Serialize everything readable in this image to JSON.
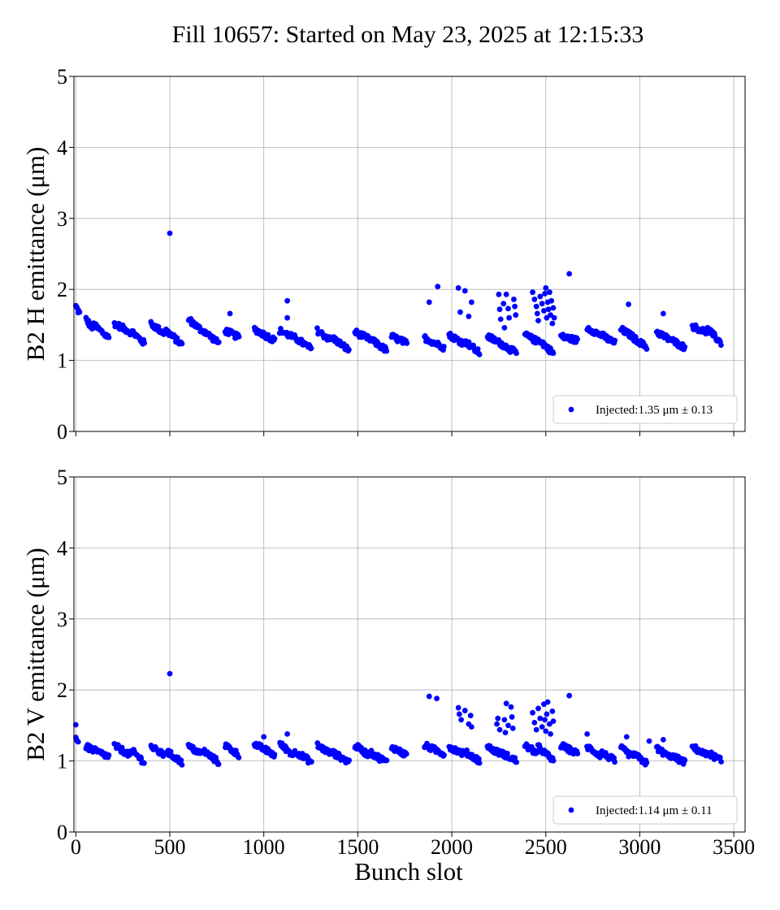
{
  "figure": {
    "title": "Fill 10657: Started on May 23, 2025 at 12:15:33",
    "xlabel": "Bunch slot"
  },
  "chart_data": [
    {
      "type": "scatter",
      "ylabel": "B2 H emittance (μm)",
      "xlim": [
        -10,
        3560
      ],
      "ylim": [
        0,
        5
      ],
      "xticks": [
        0,
        500,
        1000,
        1500,
        2000,
        2500,
        3000,
        3500
      ],
      "xtick_labels_visible": false,
      "yticks": [
        0,
        1,
        2,
        3,
        4,
        5
      ],
      "grid": true,
      "legend_position": "lower-right",
      "marker_color": "#0000ff",
      "series": [
        {
          "name": "Injected:1.35 μm ± 0.13",
          "trains": [
            [
              0,
              20,
              1.76,
              1.66
            ],
            [
              55,
              90,
              1.58,
              1.44
            ],
            [
              95,
              175,
              1.5,
              1.32
            ],
            [
              205,
              290,
              1.52,
              1.4
            ],
            [
              300,
              365,
              1.4,
              1.24
            ],
            [
              400,
              470,
              1.52,
              1.38
            ],
            [
              480,
              565,
              1.42,
              1.22
            ],
            [
              600,
              670,
              1.58,
              1.42
            ],
            [
              680,
              760,
              1.42,
              1.24
            ],
            [
              795,
              870,
              1.42,
              1.32
            ],
            [
              950,
              1060,
              1.44,
              1.28
            ],
            [
              1085,
              1160,
              1.42,
              1.32
            ],
            [
              1165,
              1255,
              1.32,
              1.16
            ],
            [
              1285,
              1360,
              1.42,
              1.28
            ],
            [
              1365,
              1455,
              1.32,
              1.14
            ],
            [
              1485,
              1560,
              1.4,
              1.3
            ],
            [
              1565,
              1655,
              1.3,
              1.14
            ],
            [
              1680,
              1760,
              1.34,
              1.24
            ],
            [
              1855,
              1960,
              1.32,
              1.18
            ],
            [
              1985,
              2065,
              1.36,
              1.24
            ],
            [
              2075,
              2150,
              1.26,
              1.1
            ],
            [
              2190,
              2260,
              1.34,
              1.24
            ],
            [
              2260,
              2345,
              1.24,
              1.1
            ],
            [
              2390,
              2460,
              1.36,
              1.26
            ],
            [
              2460,
              2540,
              1.3,
              1.1
            ],
            [
              2580,
              2670,
              1.34,
              1.28
            ],
            [
              2720,
              2790,
              1.46,
              1.36
            ],
            [
              2795,
              2870,
              1.36,
              1.24
            ],
            [
              2900,
              2960,
              1.44,
              1.34
            ],
            [
              2965,
              3040,
              1.32,
              1.18
            ],
            [
              3090,
              3155,
              1.4,
              1.3
            ],
            [
              3160,
              3240,
              1.3,
              1.18
            ],
            [
              3280,
              3355,
              1.48,
              1.4
            ],
            [
              3360,
              3435,
              1.44,
              1.24
            ]
          ],
          "outliers": [
            [
              500,
              2.79
            ],
            [
              1880,
              1.82
            ],
            [
              1925,
              2.04
            ],
            [
              2035,
              2.02
            ],
            [
              2045,
              1.68
            ],
            [
              2070,
              1.98
            ],
            [
              2090,
              1.62
            ],
            [
              2105,
              1.82
            ],
            [
              2250,
              1.93
            ],
            [
              2255,
              1.72
            ],
            [
              2260,
              1.58
            ],
            [
              2275,
              1.8
            ],
            [
              2280,
              1.46
            ],
            [
              2290,
              1.93
            ],
            [
              2300,
              1.73
            ],
            [
              2305,
              1.6
            ],
            [
              2330,
              1.86
            ],
            [
              2335,
              1.76
            ],
            [
              2340,
              1.64
            ],
            [
              2430,
              1.96
            ],
            [
              2440,
              1.86
            ],
            [
              2450,
              1.76
            ],
            [
              2455,
              1.66
            ],
            [
              2460,
              1.56
            ],
            [
              2470,
              1.9
            ],
            [
              2480,
              1.8
            ],
            [
              2490,
              1.7
            ],
            [
              2495,
              1.94
            ],
            [
              2500,
              2.02
            ],
            [
              2505,
              1.6
            ],
            [
              2510,
              1.82
            ],
            [
              2515,
              1.72
            ],
            [
              2520,
              1.96
            ],
            [
              2525,
              1.64
            ],
            [
              2530,
              1.84
            ],
            [
              2535,
              1.52
            ],
            [
              2540,
              1.74
            ],
            [
              2545,
              1.6
            ],
            [
              2625,
              2.22
            ],
            [
              2940,
              1.79
            ],
            [
              3125,
              1.66
            ],
            [
              1125,
              1.84
            ],
            [
              820,
              1.66
            ],
            [
              1125,
              1.6
            ]
          ]
        }
      ]
    },
    {
      "type": "scatter",
      "ylabel": "B2 V emittance (μm)",
      "xlim": [
        -10,
        3560
      ],
      "ylim": [
        0,
        5
      ],
      "xticks": [
        0,
        500,
        1000,
        1500,
        2000,
        2500,
        3000,
        3500
      ],
      "xtick_labels": [
        "0",
        "500",
        "1000",
        "1500",
        "2000",
        "2500",
        "3000",
        "3500"
      ],
      "yticks": [
        0,
        1,
        2,
        3,
        4,
        5
      ],
      "grid": true,
      "legend_position": "lower-right",
      "marker_color": "#0000ff",
      "series": [
        {
          "name": "Injected:1.14 μm ± 0.11",
          "trains": [
            [
              0,
              15,
              1.34,
              1.24
            ],
            [
              55,
              175,
              1.2,
              1.06
            ],
            [
              205,
              290,
              1.22,
              1.08
            ],
            [
              300,
              365,
              1.14,
              0.98
            ],
            [
              400,
              470,
              1.2,
              1.08
            ],
            [
              480,
              565,
              1.14,
              0.98
            ],
            [
              600,
              670,
              1.2,
              1.1
            ],
            [
              680,
              760,
              1.14,
              0.98
            ],
            [
              795,
              870,
              1.22,
              1.08
            ],
            [
              950,
              1060,
              1.24,
              1.08
            ],
            [
              1085,
              1160,
              1.24,
              1.08
            ],
            [
              1165,
              1255,
              1.14,
              0.98
            ],
            [
              1285,
              1360,
              1.22,
              1.1
            ],
            [
              1365,
              1455,
              1.12,
              0.98
            ],
            [
              1485,
              1560,
              1.22,
              1.08
            ],
            [
              1565,
              1655,
              1.12,
              0.98
            ],
            [
              1680,
              1760,
              1.2,
              1.08
            ],
            [
              1855,
              1960,
              1.22,
              1.1
            ],
            [
              1985,
              2065,
              1.2,
              1.1
            ],
            [
              2075,
              2150,
              1.12,
              1.0
            ],
            [
              2190,
              2260,
              1.2,
              1.1
            ],
            [
              2260,
              2345,
              1.12,
              1.0
            ],
            [
              2390,
              2460,
              1.22,
              1.1
            ],
            [
              2460,
              2540,
              1.2,
              1.0
            ],
            [
              2580,
              2670,
              1.22,
              1.1
            ],
            [
              2720,
              2790,
              1.2,
              1.08
            ],
            [
              2795,
              2870,
              1.12,
              1.0
            ],
            [
              2900,
              2960,
              1.18,
              1.06
            ],
            [
              2965,
              3040,
              1.1,
              0.96
            ],
            [
              3090,
              3155,
              1.18,
              1.06
            ],
            [
              3160,
              3240,
              1.08,
              0.98
            ],
            [
              3280,
              3355,
              1.2,
              1.08
            ],
            [
              3360,
              3435,
              1.12,
              1.0
            ]
          ],
          "outliers": [
            [
              0,
              1.51
            ],
            [
              500,
              2.23
            ],
            [
              1880,
              1.91
            ],
            [
              1920,
              1.88
            ],
            [
              2035,
              1.75
            ],
            [
              2040,
              1.66
            ],
            [
              2050,
              1.58
            ],
            [
              2070,
              1.71
            ],
            [
              2090,
              1.52
            ],
            [
              2100,
              1.64
            ],
            [
              2105,
              1.48
            ],
            [
              2240,
              1.52
            ],
            [
              2245,
              1.6
            ],
            [
              2255,
              1.44
            ],
            [
              2280,
              1.58
            ],
            [
              2285,
              1.4
            ],
            [
              2290,
              1.81
            ],
            [
              2300,
              1.5
            ],
            [
              2315,
              1.76
            ],
            [
              2320,
              1.62
            ],
            [
              2325,
              1.46
            ],
            [
              2430,
              1.68
            ],
            [
              2440,
              1.54
            ],
            [
              2450,
              1.44
            ],
            [
              2460,
              1.74
            ],
            [
              2470,
              1.6
            ],
            [
              2480,
              1.48
            ],
            [
              2490,
              1.8
            ],
            [
              2495,
              1.58
            ],
            [
              2500,
              1.42
            ],
            [
              2505,
              1.66
            ],
            [
              2510,
              1.83
            ],
            [
              2520,
              1.52
            ],
            [
              2525,
              1.38
            ],
            [
              2535,
              1.7
            ],
            [
              2540,
              1.56
            ],
            [
              2625,
              1.92
            ],
            [
              2720,
              1.38
            ],
            [
              2930,
              1.34
            ],
            [
              1125,
              1.38
            ],
            [
              1000,
              1.34
            ],
            [
              3050,
              1.28
            ],
            [
              3125,
              1.3
            ]
          ]
        }
      ]
    }
  ]
}
